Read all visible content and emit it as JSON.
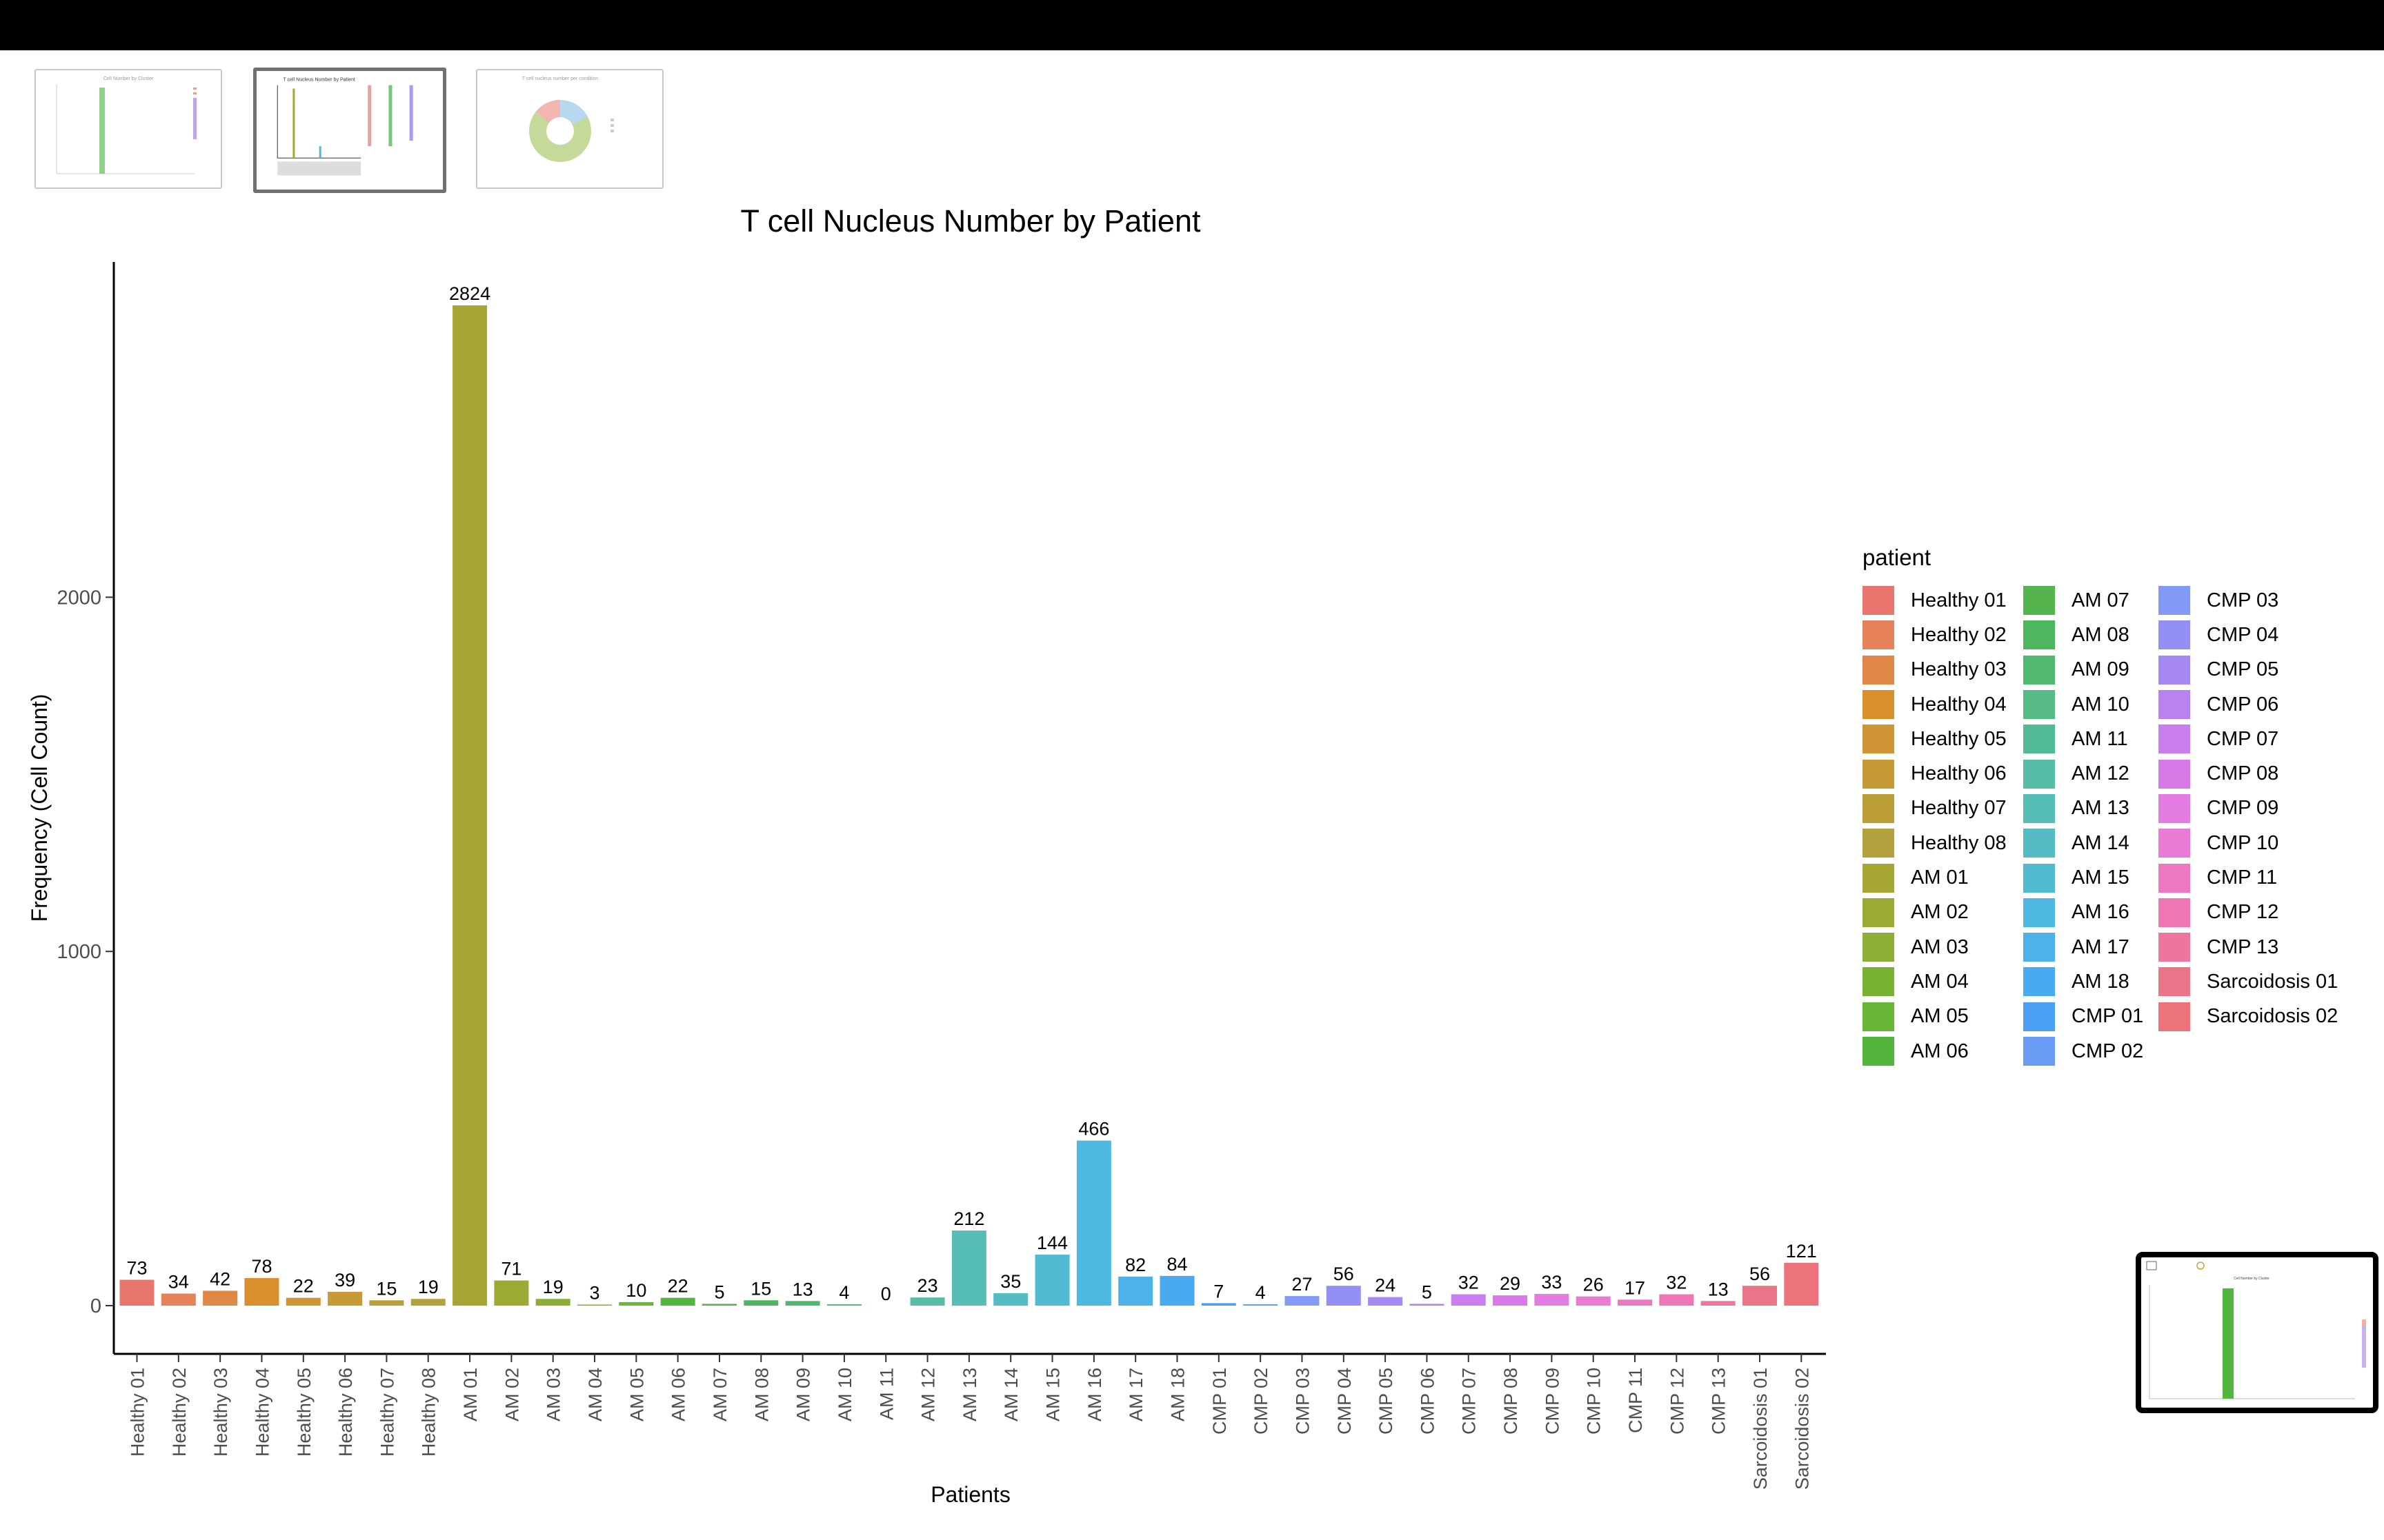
{
  "thumbnails": [
    {
      "title": "Cell Number by Cluster",
      "active": false
    },
    {
      "title": "T cell Nucleus Number by Patient",
      "active": true
    },
    {
      "title": "T cell nucleus number per condition",
      "active": false
    }
  ],
  "chart_data": {
    "type": "bar",
    "title": "T cell Nucleus Number by Patient",
    "xlabel": "Patients",
    "ylabel": "Frequency (Cell Count)",
    "ylim": [
      -140,
      2930
    ],
    "yticks": [
      0,
      1000,
      2000
    ],
    "grid": false,
    "legend_title": "patient",
    "legend_position": "right",
    "categories": [
      "Healthy 01",
      "Healthy 02",
      "Healthy 03",
      "Healthy 04",
      "Healthy 05",
      "Healthy 06",
      "Healthy 07",
      "Healthy 08",
      "AM 01",
      "AM 02",
      "AM 03",
      "AM 04",
      "AM 05",
      "AM 06",
      "AM 07",
      "AM 08",
      "AM 09",
      "AM 10",
      "AM 11",
      "AM 12",
      "AM 13",
      "AM 14",
      "AM 15",
      "AM 16",
      "AM 17",
      "AM 18",
      "CMP 01",
      "CMP 02",
      "CMP 03",
      "CMP 04",
      "CMP 05",
      "CMP 06",
      "CMP 07",
      "CMP 08",
      "CMP 09",
      "CMP 10",
      "CMP 11",
      "CMP 12",
      "CMP 13",
      "Sarcoidosis 01",
      "Sarcoidosis 02"
    ],
    "values": [
      73,
      34,
      42,
      78,
      22,
      39,
      15,
      19,
      2824,
      71,
      19,
      3,
      10,
      22,
      5,
      15,
      13,
      4,
      0,
      23,
      212,
      35,
      144,
      466,
      82,
      84,
      7,
      4,
      27,
      56,
      24,
      5,
      32,
      29,
      33,
      26,
      17,
      32,
      13,
      56,
      121
    ],
    "colors": [
      "#E8766F",
      "#E6815A",
      "#DF8846",
      "#D98F2E",
      "#CF9535",
      "#C69B37",
      "#BC9E39",
      "#B2A13D",
      "#A6A733",
      "#9CAA33",
      "#8AAE36",
      "#7AB233",
      "#67B637",
      "#53B43E",
      "#56B44E",
      "#4FB660",
      "#51B872",
      "#55BA83",
      "#52BB96",
      "#58BDA6",
      "#57BEB7",
      "#55BCC3",
      "#52BBD2",
      "#4FB8E1",
      "#4DB2EA",
      "#4AAAF0",
      "#4BA0F3",
      "#6A9CF5",
      "#8399F6",
      "#938FF5",
      "#A688F3",
      "#B882F0",
      "#C97EED",
      "#D77AE8",
      "#E37CE0",
      "#E87BD3",
      "#EC78C2",
      "#ED77B2",
      "#ED76A0",
      "#EC7489",
      "#EC737C"
    ]
  },
  "pip": {
    "title": "Cell Number by Cluster"
  }
}
